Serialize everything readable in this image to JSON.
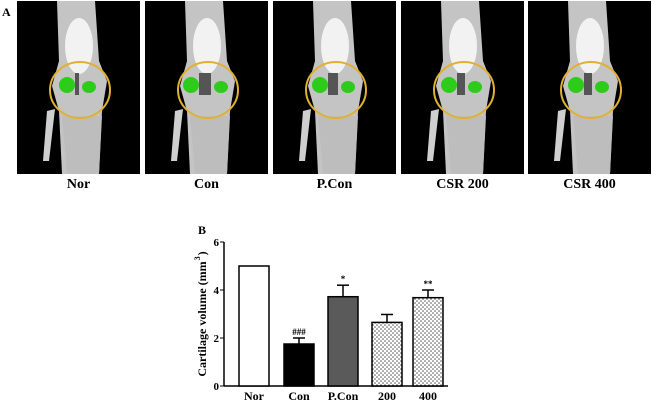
{
  "panel_a": {
    "letter": "A",
    "images": [
      {
        "label": "Nor"
      },
      {
        "label": "Con"
      },
      {
        "label": "P.Con"
      },
      {
        "label": "CSR 200"
      },
      {
        "label": "CSR 400"
      }
    ],
    "colors": {
      "background": "#000000",
      "bone": "#d9d9d9",
      "cartilage": "#2ecc1a",
      "highlight_circle": "#e0b030"
    }
  },
  "panel_b": {
    "letter": "B"
  },
  "chart_data": {
    "type": "bar",
    "categories": [
      "Nor",
      "Con",
      "P.Con",
      "200",
      "400"
    ],
    "values": [
      5.0,
      1.75,
      3.72,
      2.65,
      3.68
    ],
    "errors": [
      0,
      0.25,
      0.48,
      0.33,
      0.32
    ],
    "annotations": [
      "",
      "###",
      "*",
      "",
      "**"
    ],
    "bar_fills": [
      "white",
      "black",
      "dark-gray",
      "dotted",
      "dotted"
    ],
    "ylabel": "Cartilage volume (mm³)",
    "ylabel_main": "Cartilage volume (mm",
    "ylabel_sup": "3",
    "ylabel_close": ")",
    "ylim": [
      0,
      6
    ],
    "yticks": [
      "0",
      "2",
      "4",
      "6"
    ],
    "grid": false
  }
}
